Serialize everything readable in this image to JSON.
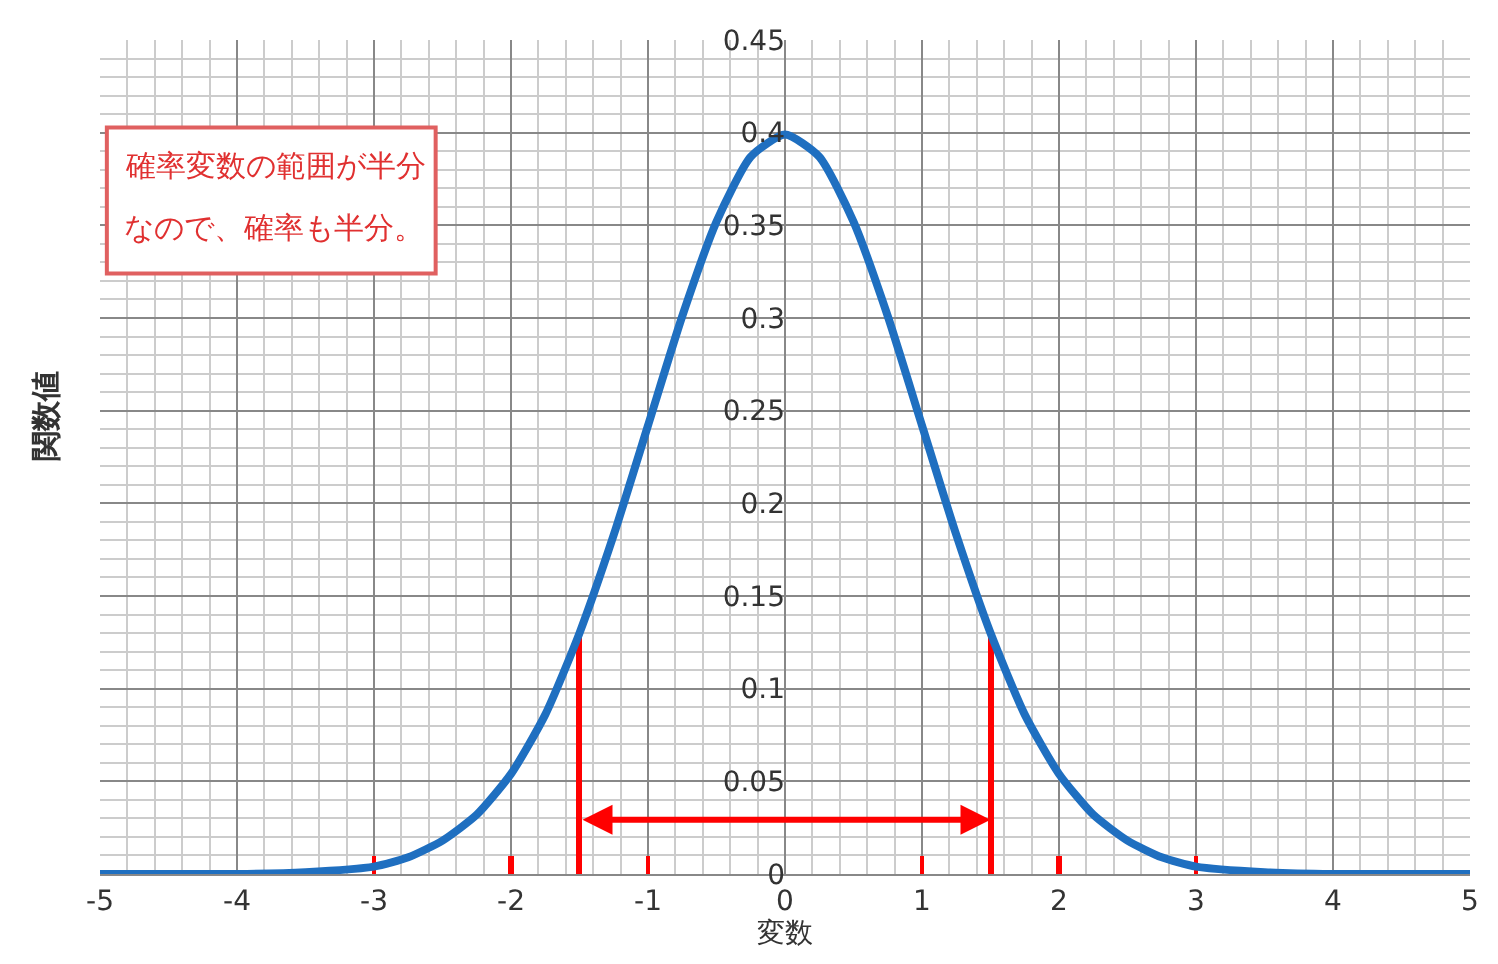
{
  "chart_data": {
    "type": "line",
    "xlabel": "変数",
    "ylabel": "関数値",
    "x": [
      -5,
      -4.5,
      -4,
      -3.5,
      -3,
      -2.75,
      -2.5,
      -2.25,
      -2,
      -1.75,
      -1.5,
      -1.25,
      -1,
      -0.75,
      -0.5,
      -0.25,
      0,
      0.25,
      0.5,
      0.75,
      1,
      1.25,
      1.5,
      1.75,
      2,
      2.25,
      2.5,
      2.75,
      3,
      3.5,
      4,
      4.5,
      5
    ],
    "series": [
      {
        "color": "#1f6fc0",
        "values": [
          0,
          0,
          0,
          0.001,
          0.004,
          0.009,
          0.018,
          0.032,
          0.054,
          0.086,
          0.13,
          0.183,
          0.242,
          0.301,
          0.352,
          0.387,
          0.399,
          0.387,
          0.352,
          0.301,
          0.242,
          0.183,
          0.13,
          0.086,
          0.054,
          0.032,
          0.018,
          0.009,
          0.004,
          0.001,
          0,
          0,
          0
        ]
      },
      {
        "type": "bar",
        "color": "#ff0000",
        "x": [
          -3,
          -2,
          -1.5,
          -1,
          1,
          1.5,
          2,
          3
        ],
        "values": [
          0.01,
          0.01,
          0.13,
          0.01,
          0.01,
          0.13,
          0.01,
          0.01
        ]
      }
    ],
    "xlim": [
      -5,
      5
    ],
    "xticks": [
      -5,
      -4,
      -3,
      -2,
      -1,
      0,
      1,
      2,
      3,
      4,
      5
    ],
    "ylim": [
      0,
      0.45
    ],
    "yticks": [
      0,
      0.05,
      0.1,
      0.15,
      0.2,
      0.25,
      0.3,
      0.35,
      0.4,
      0.45
    ],
    "grid": true,
    "marker": "none",
    "line_style": "solid",
    "annotations": [
      "確率変数の範囲が半分",
      "なので、確率も半分。"
    ]
  }
}
